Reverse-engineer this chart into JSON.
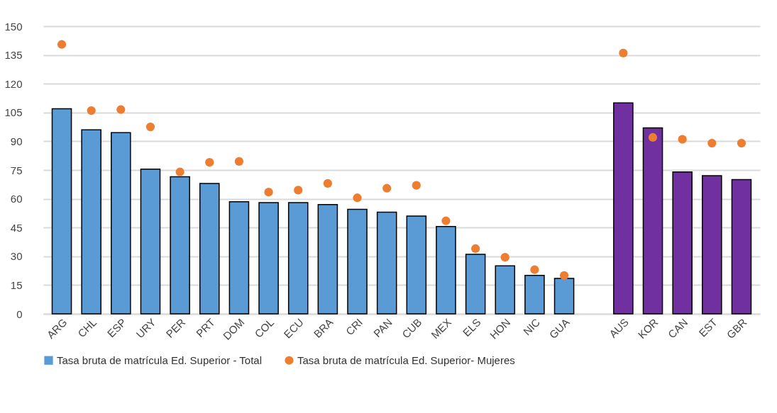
{
  "chart_data": {
    "type": "bar",
    "categories": [
      "ARG",
      "CHL",
      "ESP",
      "URY",
      "PER",
      "PRT",
      "DOM",
      "COL",
      "ECU",
      "BRA",
      "CRI",
      "PAN",
      "CUB",
      "MEX",
      "ELS",
      "HON",
      "NIC",
      "GUA",
      null,
      "AUS",
      "KOR",
      "CAN",
      "EST",
      "GBR"
    ],
    "series": [
      {
        "name": "Tasa bruta de matrícula Ed. Superior - Total",
        "color": "#5b9bd5",
        "colors": [
          "#5b9bd5",
          "#5b9bd5",
          "#5b9bd5",
          "#5b9bd5",
          "#5b9bd5",
          "#5b9bd5",
          "#5b9bd5",
          "#5b9bd5",
          "#5b9bd5",
          "#5b9bd5",
          "#5b9bd5",
          "#5b9bd5",
          "#5b9bd5",
          "#5b9bd5",
          "#5b9bd5",
          "#5b9bd5",
          "#5b9bd5",
          "#5b9bd5",
          null,
          "#7030a0",
          "#7030a0",
          "#7030a0",
          "#7030a0",
          "#7030a0"
        ],
        "values": [
          107,
          96,
          94.5,
          75.5,
          71.5,
          68,
          58.5,
          58,
          58,
          57,
          54.5,
          53,
          51,
          45.5,
          31,
          25,
          20,
          18.5,
          null,
          110,
          97,
          74,
          72,
          70
        ]
      },
      {
        "name": "Tasa bruta de matrícula Ed. Superior- Mujeres",
        "type": "scatter",
        "color": "#ed7d31",
        "values": [
          140.5,
          106,
          106.5,
          97.5,
          74,
          79,
          79.5,
          63.5,
          64.5,
          68,
          60.5,
          65.5,
          67,
          48.5,
          34,
          29.5,
          23,
          20,
          null,
          136,
          92,
          91,
          89,
          89
        ]
      }
    ],
    "ylim": [
      0,
      150
    ],
    "yticks": [
      0,
      15,
      30,
      45,
      60,
      75,
      90,
      105,
      120,
      135,
      150
    ],
    "grid": "y",
    "legend": "bottom",
    "marker": "circle"
  }
}
